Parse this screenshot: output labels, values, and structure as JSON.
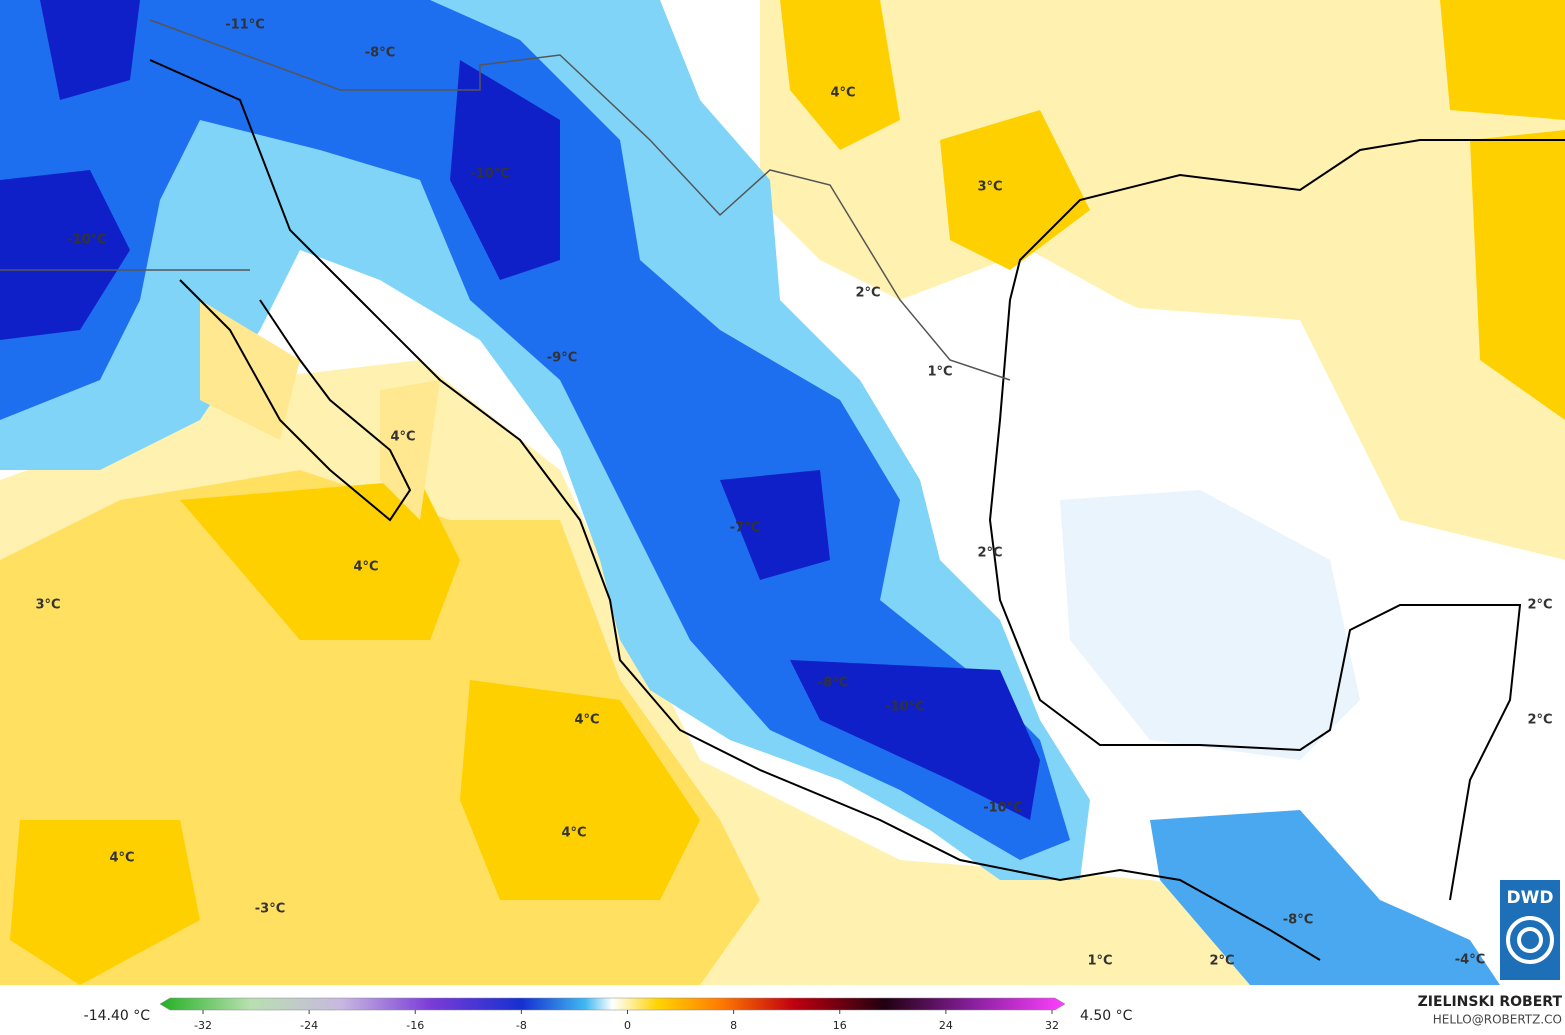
{
  "map_labels": [
    "-11°C",
    "-8°C",
    "-10°C",
    "-10°C",
    "4°C",
    "3°C",
    "2°C",
    "1°C",
    "-9°C",
    "4°C",
    "-7°C",
    "2°C",
    "4°C",
    "3°C",
    "2°C",
    "4°C",
    "-8°C",
    "-10°C",
    "2°C",
    "-10°C",
    "4°C",
    "4°C",
    "-3°C",
    "-8°C",
    "1°C",
    "2°C",
    "-4°C"
  ],
  "colorbar": {
    "min_label": "-14.40 °C",
    "max_label": "4.50 °C",
    "ticks": [
      -32,
      -24,
      -16,
      -8,
      0,
      8,
      16,
      24,
      32
    ]
  },
  "author": "ZIELINSKI ROBERT",
  "email": "HELLO@ROBERTZ.CO",
  "logo": "DWD"
}
